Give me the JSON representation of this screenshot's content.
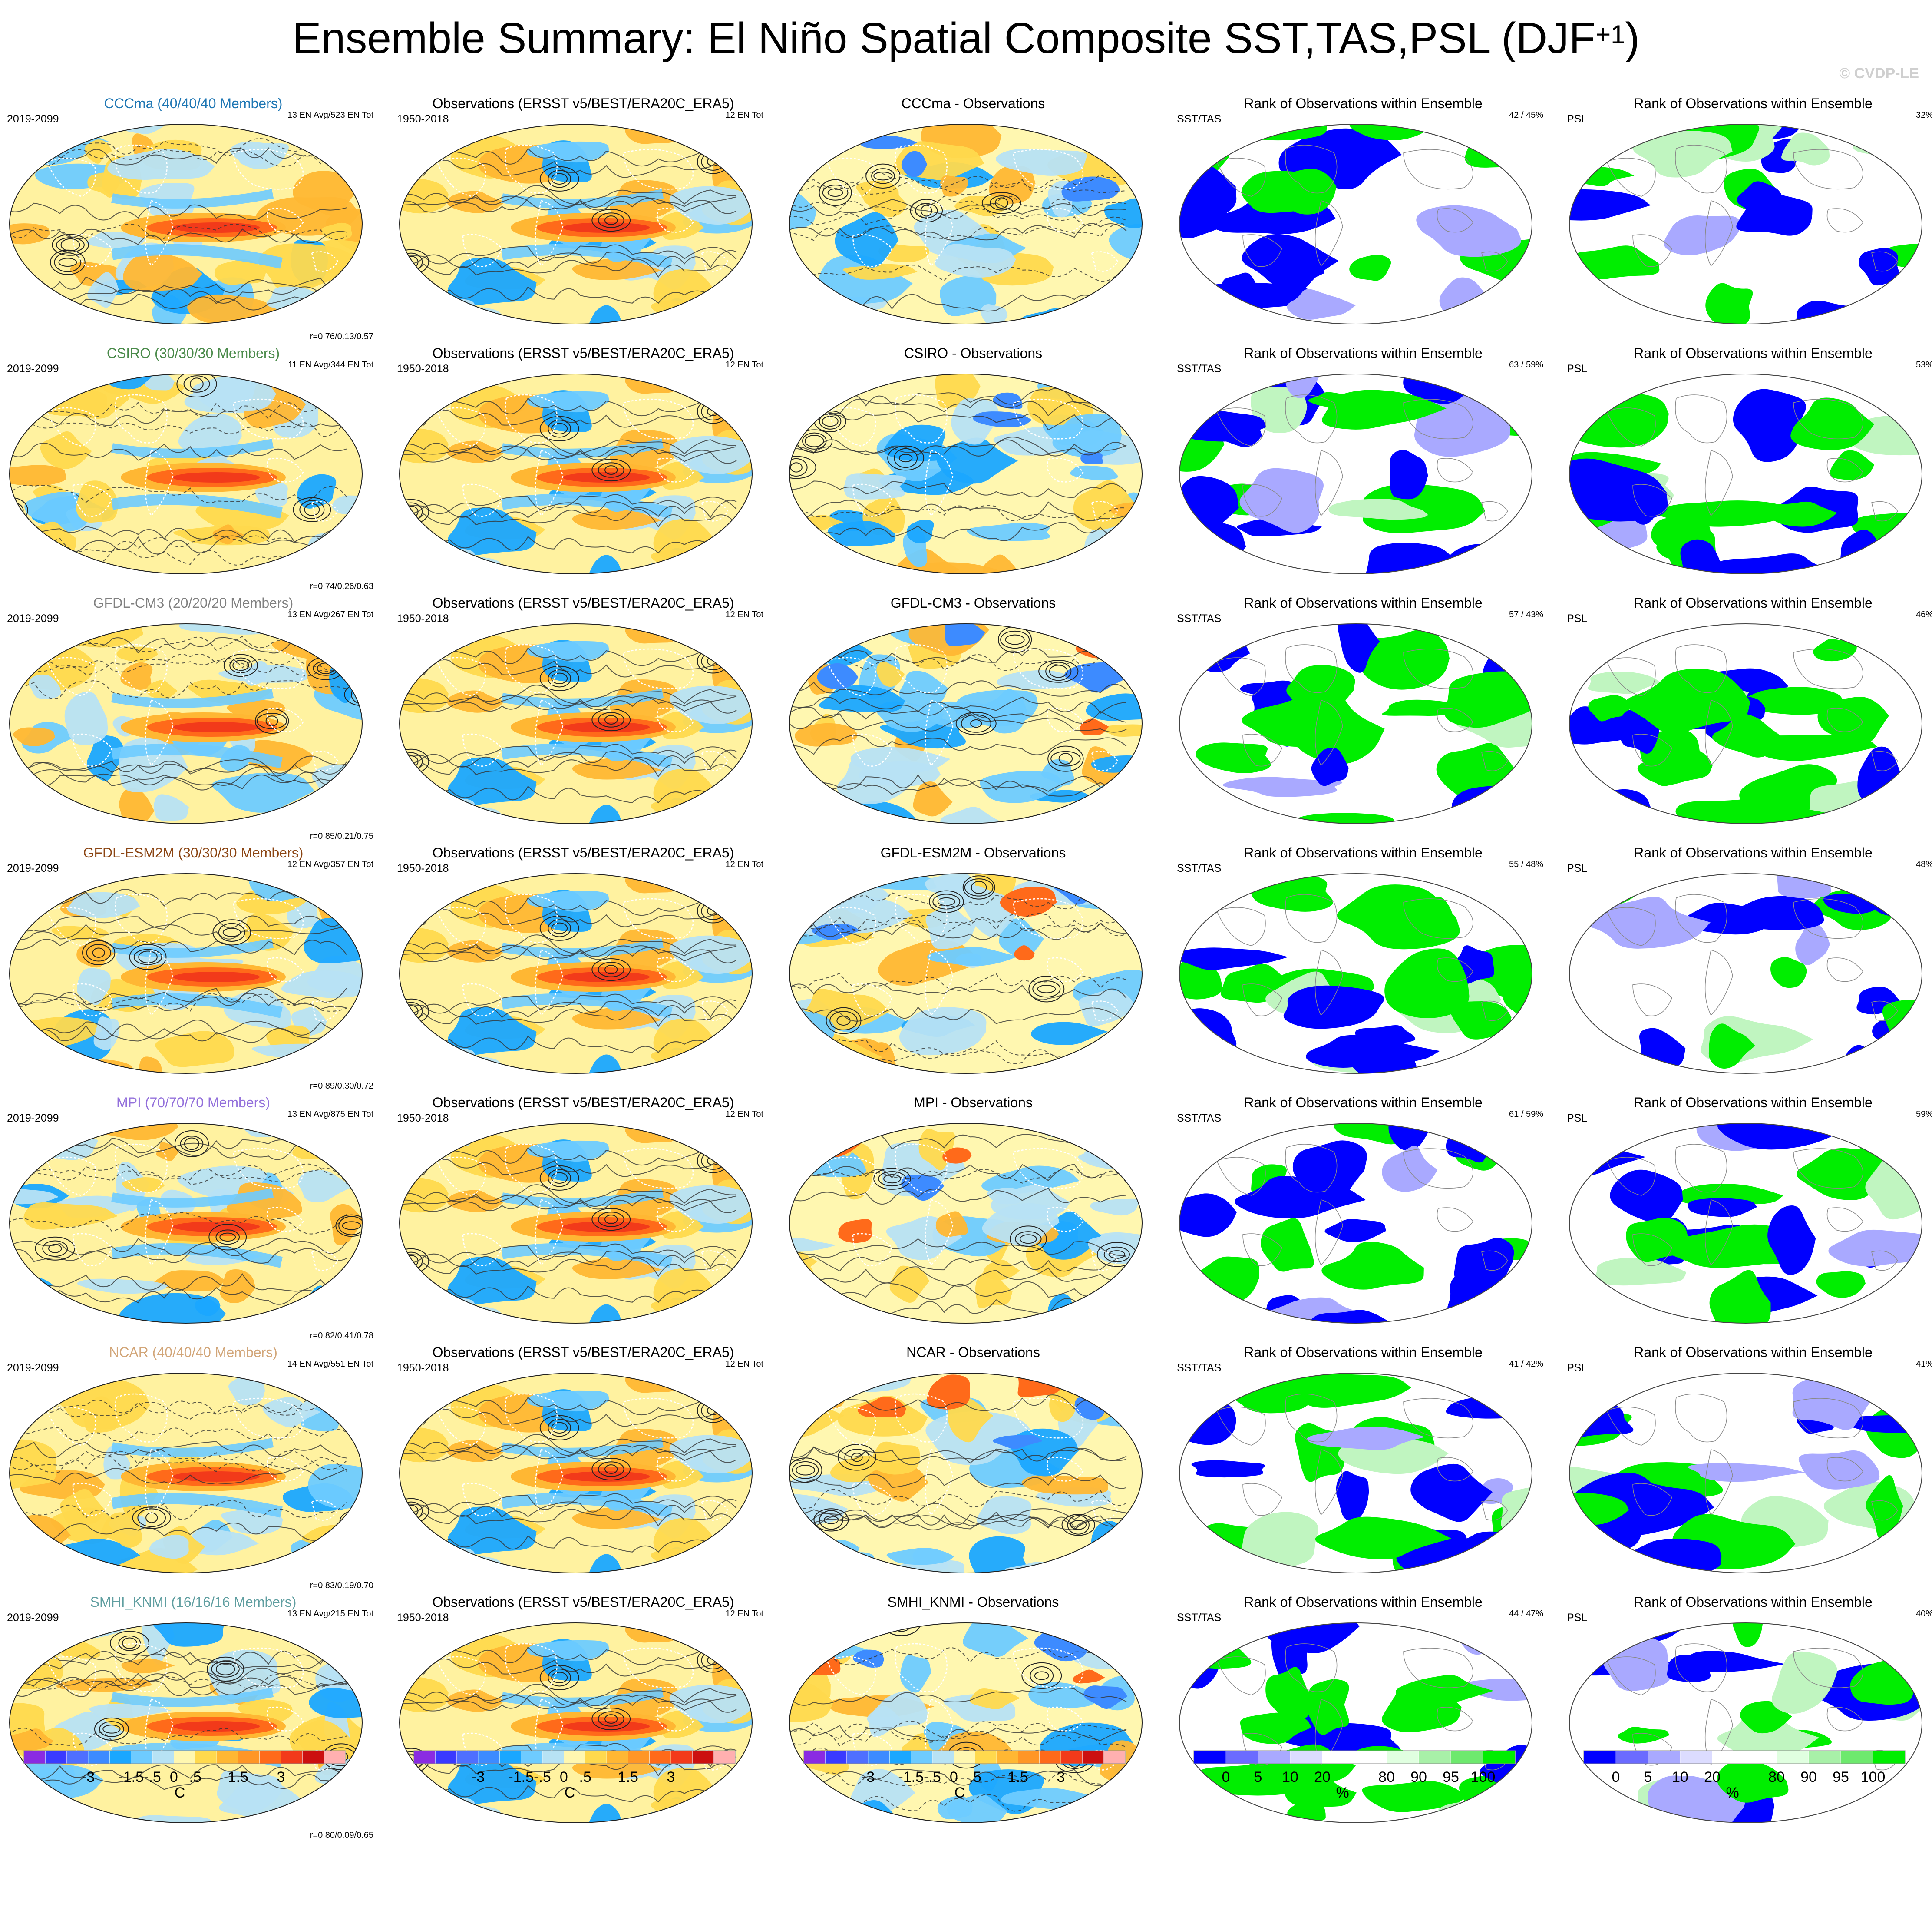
{
  "title_main": "Ensemble Summary: El Niño Spatial Composite SST,TAS,PSL (DJF",
  "title_sup": "+1",
  "title_end": ")",
  "copyright": "© CVDP-LE",
  "rows": [
    {
      "model": "CCCma (40/40/40 Members)",
      "model_color": "#1f77b4",
      "period": "2019-2099",
      "ensemble": "13 EN Avg/523 EN Tot",
      "r": "r=0.76/0.13/0.57",
      "obs_title": "Observations (ERSST v5/BEST/ERA20C_ERA5)",
      "obs_period": "1950-2018",
      "obs_count": "12 EN Tot",
      "diff_title": "CCCma - Observations",
      "rank_title": "Rank of Observations within Ensemble",
      "sst_label": "SST/TAS",
      "sst_pct": "42 /  45%",
      "psl_label": "PSL",
      "psl_pct": "32%"
    },
    {
      "model": "CSIRO (30/30/30 Members)",
      "model_color": "#4a8a4a",
      "period": "2019-2099",
      "ensemble": "11 EN Avg/344 EN Tot",
      "r": "r=0.74/0.26/0.63",
      "obs_title": "Observations (ERSST v5/BEST/ERA20C_ERA5)",
      "obs_period": "1950-2018",
      "obs_count": "12 EN Tot",
      "diff_title": "CSIRO - Observations",
      "rank_title": "Rank of Observations within Ensemble",
      "sst_label": "SST/TAS",
      "sst_pct": "63 /  59%",
      "psl_label": "PSL",
      "psl_pct": "53%"
    },
    {
      "model": "GFDL-CM3 (20/20/20 Members)",
      "model_color": "#808080",
      "period": "2019-2099",
      "ensemble": "13 EN Avg/267 EN Tot",
      "r": "r=0.85/0.21/0.75",
      "obs_title": "Observations (ERSST v5/BEST/ERA20C_ERA5)",
      "obs_period": "1950-2018",
      "obs_count": "12 EN Tot",
      "diff_title": "GFDL-CM3 - Observations",
      "rank_title": "Rank of Observations within Ensemble",
      "sst_label": "SST/TAS",
      "sst_pct": "57 /  43%",
      "psl_label": "PSL",
      "psl_pct": "46%"
    },
    {
      "model": "GFDL-ESM2M (30/30/30 Members)",
      "model_color": "#8b4513",
      "period": "2019-2099",
      "ensemble": "12 EN Avg/357 EN Tot",
      "r": "r=0.89/0.30/0.72",
      "obs_title": "Observations (ERSST v5/BEST/ERA20C_ERA5)",
      "obs_period": "1950-2018",
      "obs_count": "12 EN Tot",
      "diff_title": "GFDL-ESM2M - Observations",
      "rank_title": "Rank of Observations within Ensemble",
      "sst_label": "SST/TAS",
      "sst_pct": "55 /  48%",
      "psl_label": "PSL",
      "psl_pct": "48%"
    },
    {
      "model": "MPI (70/70/70 Members)",
      "model_color": "#9370db",
      "period": "2019-2099",
      "ensemble": "13 EN Avg/875 EN Tot",
      "r": "r=0.82/0.41/0.78",
      "obs_title": "Observations (ERSST v5/BEST/ERA20C_ERA5)",
      "obs_period": "1950-2018",
      "obs_count": "12 EN Tot",
      "diff_title": "MPI - Observations",
      "rank_title": "Rank of Observations within Ensemble",
      "sst_label": "SST/TAS",
      "sst_pct": "61 /  59%",
      "psl_label": "PSL",
      "psl_pct": "59%"
    },
    {
      "model": "NCAR (40/40/40 Members)",
      "model_color": "#d2a679",
      "period": "2019-2099",
      "ensemble": "14 EN Avg/551 EN Tot",
      "r": "r=0.83/0.19/0.70",
      "obs_title": "Observations (ERSST v5/BEST/ERA20C_ERA5)",
      "obs_period": "1950-2018",
      "obs_count": "12 EN Tot",
      "diff_title": "NCAR - Observations",
      "rank_title": "Rank of Observations within Ensemble",
      "sst_label": "SST/TAS",
      "sst_pct": "41 /  42%",
      "psl_label": "PSL",
      "psl_pct": "41%"
    },
    {
      "model": "SMHI_KNMI (16/16/16 Members)",
      "model_color": "#5f9ea0",
      "period": "2019-2099",
      "ensemble": "13 EN Avg/215 EN Tot",
      "r": "r=0.80/0.09/0.65",
      "obs_title": "Observations (ERSST v5/BEST/ERA20C_ERA5)",
      "obs_period": "1950-2018",
      "obs_count": "12 EN Tot",
      "diff_title": "SMHI_KNMI - Observations",
      "rank_title": "Rank of Observations within Ensemble",
      "sst_label": "SST/TAS",
      "sst_pct": "44 /  47%",
      "psl_label": "PSL",
      "psl_pct": "40%"
    }
  ],
  "colorbar_temp": {
    "colors": [
      "#8a2be2",
      "#3a3aff",
      "#4f6fff",
      "#3d8bff",
      "#1aa7ff",
      "#6ecbff",
      "#b7e2f4",
      "#fff7b0",
      "#ffd94d",
      "#ffb733",
      "#ff9626",
      "#ff6a1a",
      "#f23a1a",
      "#cc1010",
      "#ffb0b0"
    ],
    "ticks": [
      "-3",
      "-1.5",
      "-.5",
      "0",
      ".5",
      "1.5",
      "3"
    ],
    "unit": "C"
  },
  "colorbar_rank": {
    "colors": [
      "#0000ff",
      "#6b6bff",
      "#a9a9ff",
      "#dcdcff",
      "#ffffff",
      "#ffffff",
      "#e0ffe0",
      "#a8f0a8",
      "#6ee96e",
      "#00ee00"
    ],
    "ticks": [
      "0",
      "5",
      "10",
      "20",
      "80",
      "90",
      "95",
      "100"
    ],
    "unit": "%"
  },
  "palette": {
    "blue": "#0000ff",
    "green": "#00ee00",
    "lightblue": "#a9a9ff",
    "lightgreen": "#c0f5c0"
  }
}
